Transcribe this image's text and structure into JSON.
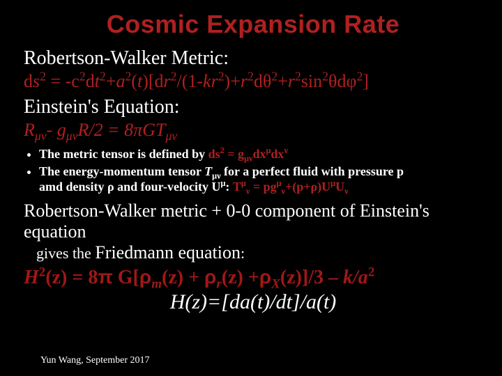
{
  "colors": {
    "bg": "#000000",
    "text_white": "#ffffff",
    "accent_red": "#b02020",
    "friedmann_red": "#a01818"
  },
  "title": "Cosmic Expansion Rate",
  "rw_heading": "Robertson-Walker Metric:",
  "rw_metric": {
    "pre": "d",
    "s": "s",
    "eq": " = -c",
    "dt": "d",
    "t": "t",
    "plus_a": "+",
    "a": "a",
    "of_t_open": "(",
    "of_t_t": "t",
    "of_t_close": ")[d",
    "r": "r",
    "over": "/(1-",
    "k": "k",
    "r2": "r",
    "close_plus": ")+",
    "r3": "r",
    "dtheta": "dθ",
    "plus2": "+",
    "r4": "r",
    "sin": "sin",
    "theta_dphi": "θdφ",
    "end": "]"
  },
  "einstein_heading": "Einstein's Equation:",
  "einstein_eq": {
    "R": "R",
    "minus_g": "- g",
    "R2": "R",
    "half": "/2 = 8π",
    "G": "G",
    "T": "T"
  },
  "bullet1": {
    "pre": "The metric tensor is defined by ",
    "ds": "ds",
    "eq": " = g",
    "dx1": "dx",
    "dx2": "dx"
  },
  "bullet2": {
    "line1_pre": "The energy-momentum tensor ",
    "T": "T",
    "line1_mid": " for a perfect fluid with pressure p",
    "line2_pre": "amd density ρ and four-velocity U",
    "line2_colon": ": ",
    "Teq": "T",
    "eq": " = pg",
    "plus": "+(p+ρ)U",
    "U2": "U"
  },
  "combine1": "Robertson-Walker metric + 0-0 component of Einstein's equation",
  "combine2_pre": "gives the ",
  "combine2_main": "Friedmann equation",
  "combine2_post": ":",
  "friedmann": {
    "H": "H",
    "z_eq": "(z) = 8",
    "pi": "π",
    "G_open": " G[",
    "rho_m": "ρ",
    "m": "m",
    "z1": "(z) + ",
    "rho_r": "ρ",
    "r": "r",
    "z2": "(z) +",
    "rho_X": "ρ",
    "X": "X",
    "z3": "(z)]/3 ",
    "minus": "–",
    "ka": " k/a"
  },
  "hz": "H(z)=[da(t)/dt]/a(t)",
  "footer": "Yun Wang, September 2017"
}
